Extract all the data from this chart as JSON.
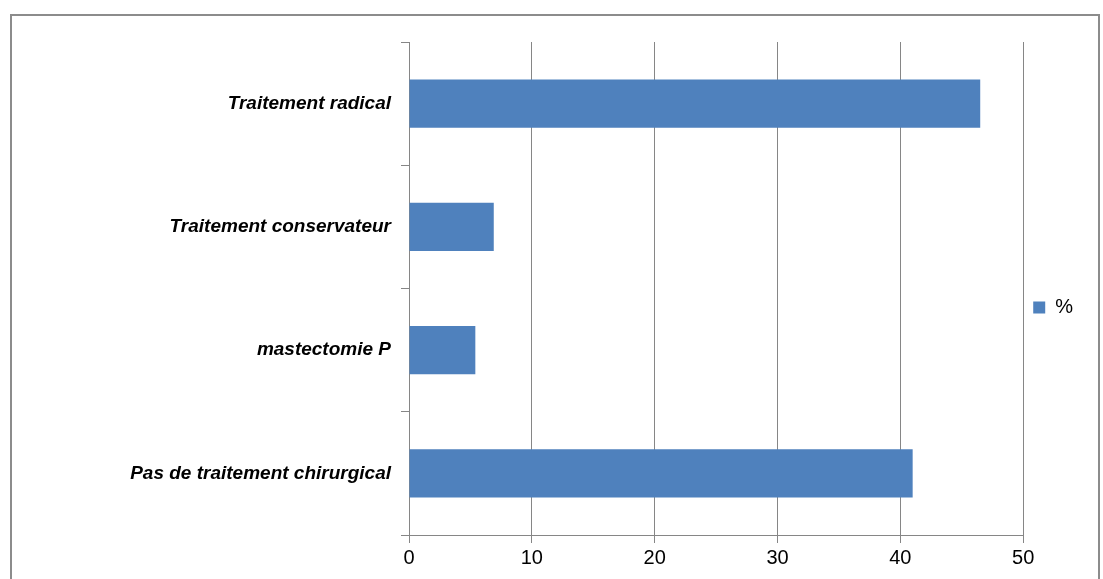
{
  "chart_data": {
    "type": "bar",
    "orientation": "horizontal",
    "categories": [
      "Traitement radical",
      "Traitement conservateur",
      "mastectomie P",
      "Pas de traitement chirurgical"
    ],
    "series": [
      {
        "name": "%",
        "color": "#4f81bd",
        "values": [
          46.5,
          6.9,
          5.4,
          41.0
        ]
      }
    ],
    "xlim": [
      0,
      50
    ],
    "xticks": [
      0,
      10,
      20,
      30,
      40,
      50
    ],
    "grid": "x",
    "legend": "right"
  }
}
